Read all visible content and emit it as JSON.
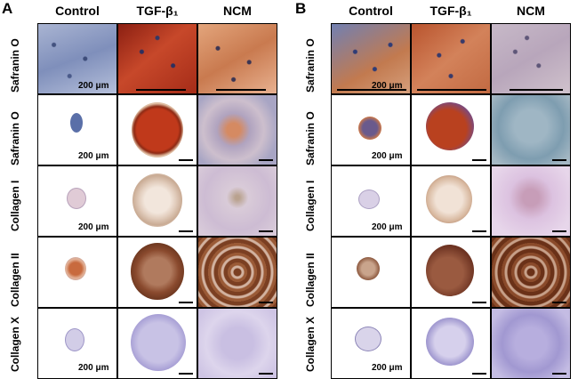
{
  "panels": [
    {
      "letter": "A",
      "columns": [
        "Control",
        "TGF-β₁",
        "NCM"
      ],
      "rows": [
        "Safranin O",
        "Safranin O",
        "Collagen I",
        "Collagen II",
        "Collagen X"
      ],
      "scale_labels": [
        "200 μm",
        "200 μm",
        "200 μm",
        "200 μm"
      ]
    },
    {
      "letter": "B",
      "columns": [
        "Control",
        "TGF-β₁",
        "NCM"
      ],
      "rows": [
        "Safranin O",
        "Safranin O",
        "Collagen I",
        "Collagen II",
        "Collagen X"
      ],
      "scale_labels": [
        "200 μm",
        "200 μm",
        "200 μm",
        "200 μm"
      ]
    }
  ],
  "stain_colors": {
    "safranin_hi_control": "#8e9cc4",
    "safranin_hi_tgf": "#b23a1e",
    "safranin_hi_ncm": "#d9956a",
    "safranin_lo_control": "#5a6fa8",
    "safranin_lo_tgf": "#c0391b",
    "safranin_lo_ncm": "#b8a7b8",
    "collagen1": "#e3cfc6",
    "collagen1_ncm": "#dccbd9",
    "collagen2": "#8a4a2e",
    "collagen10": "#b9b4de"
  }
}
